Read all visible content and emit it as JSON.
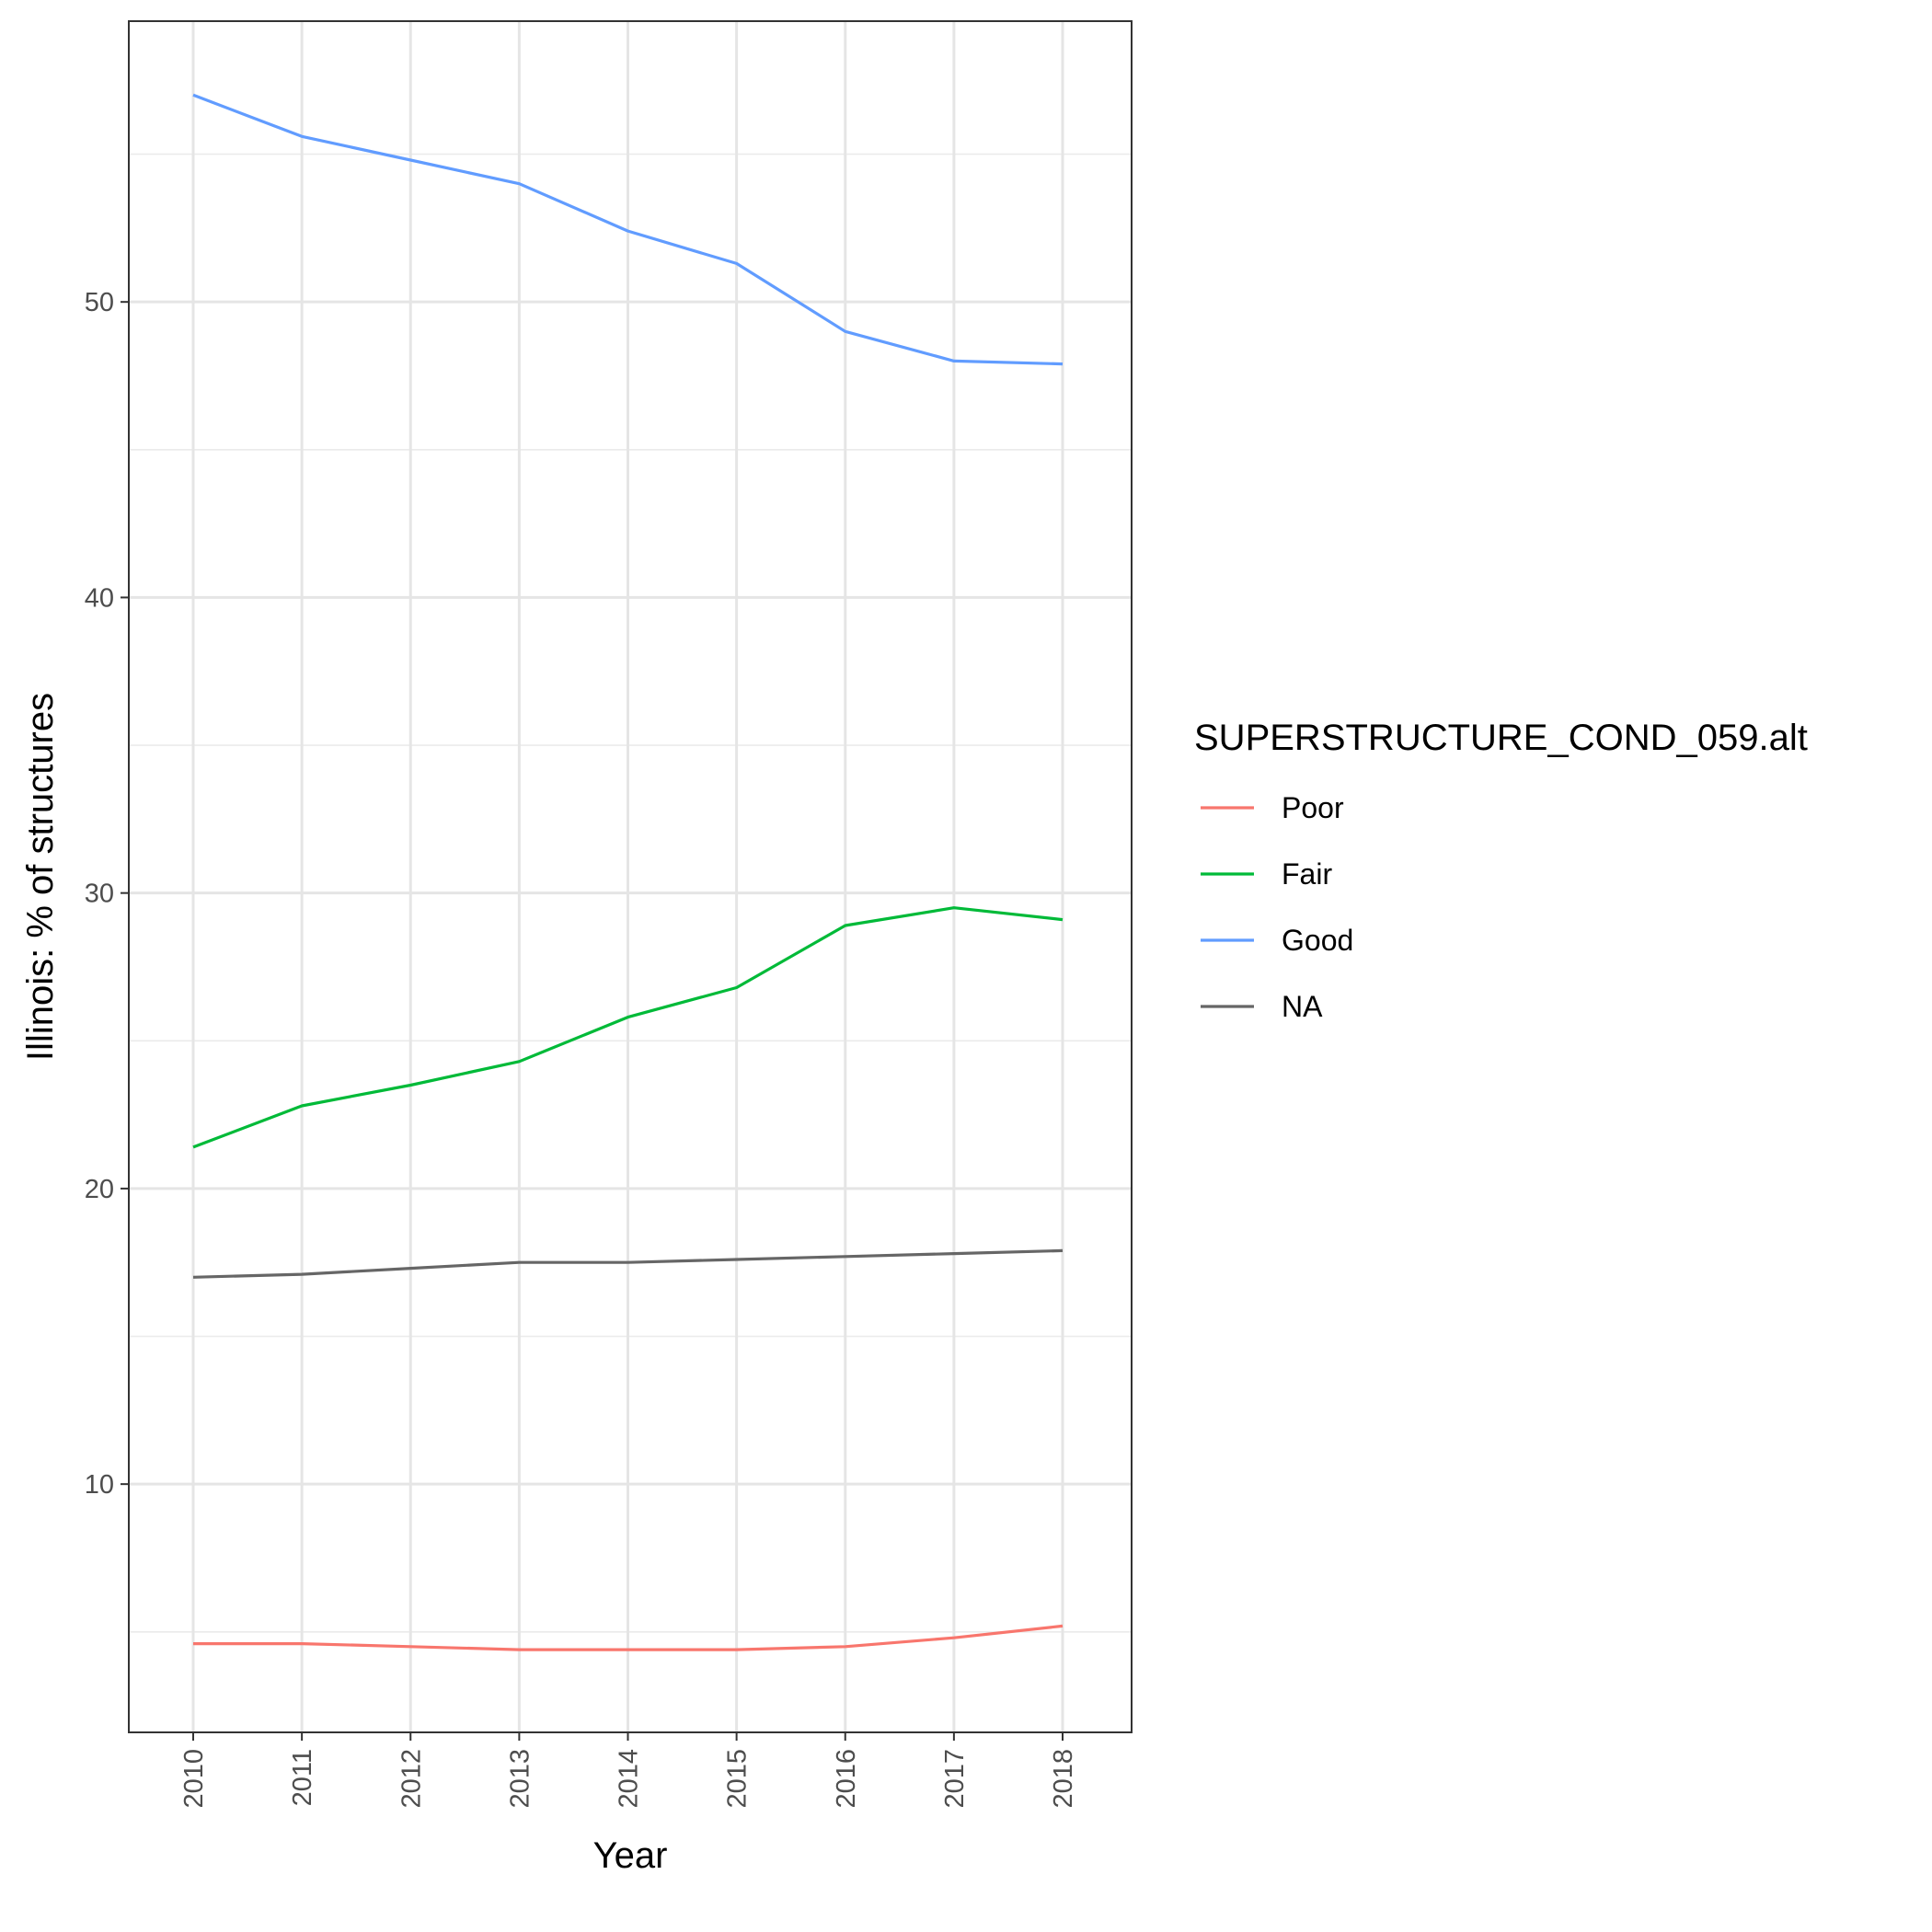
{
  "chart_data": {
    "type": "line",
    "title": "",
    "xlabel": "Year",
    "ylabel": "Illinois: % of structures",
    "x": [
      2010,
      2011,
      2012,
      2013,
      2014,
      2015,
      2016,
      2017,
      2018
    ],
    "x_tick_labels": [
      "2010",
      "2011",
      "2012",
      "2013",
      "2014",
      "2015",
      "2016",
      "2017",
      "2018"
    ],
    "y_ticks": [
      10,
      20,
      30,
      40,
      50
    ],
    "y_tick_labels": [
      "10",
      "20",
      "30",
      "40",
      "50"
    ],
    "ylim": [
      1.6,
      59.5
    ],
    "grid": true,
    "legend_position": "right",
    "legend_title": "SUPERSTRUCTURE_COND_059.alt",
    "series": [
      {
        "name": "Poor",
        "color": "#F8766D",
        "values": [
          4.6,
          4.6,
          4.5,
          4.4,
          4.4,
          4.4,
          4.5,
          4.8,
          5.2
        ]
      },
      {
        "name": "Fair",
        "color": "#00BA38",
        "values": [
          21.4,
          22.8,
          23.5,
          24.3,
          25.8,
          26.8,
          28.9,
          29.5,
          29.1
        ]
      },
      {
        "name": "Good",
        "color": "#619CFF",
        "values": [
          57.0,
          55.6,
          54.8,
          54.0,
          52.4,
          51.3,
          49.0,
          48.0,
          47.9
        ]
      },
      {
        "name": "NA",
        "color": "#666666",
        "values": [
          17.0,
          17.1,
          17.3,
          17.5,
          17.5,
          17.6,
          17.7,
          17.8,
          17.9
        ]
      }
    ]
  }
}
